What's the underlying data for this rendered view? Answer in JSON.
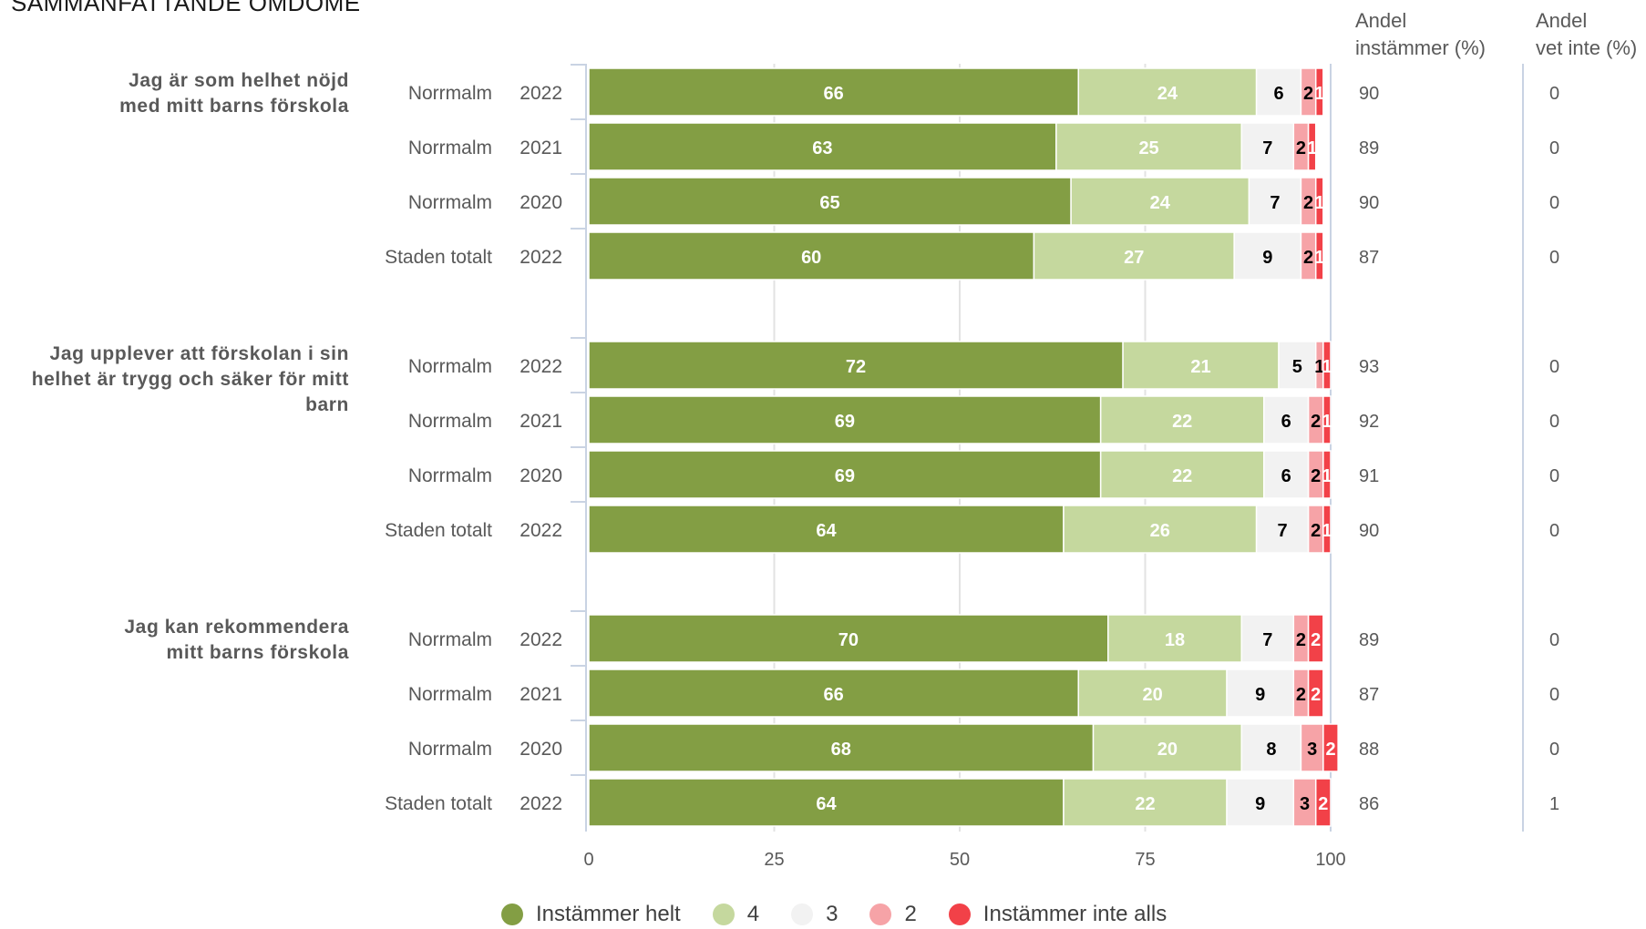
{
  "title": "SAMMANFATTANDE OMDÖME",
  "columns": {
    "agree_head": [
      "Andel",
      "instämmer (%)"
    ],
    "dontknow_head": [
      "Andel",
      "vet inte (%)"
    ]
  },
  "legend": [
    {
      "label": "Instämmer helt",
      "color": "#839e44"
    },
    {
      "label": "4",
      "color": "#c5d89e"
    },
    {
      "label": "3",
      "color": "#f2f2f2"
    },
    {
      "label": "2",
      "color": "#f6a3a7"
    },
    {
      "label": "Instämmer inte alls",
      "color": "#f24148"
    }
  ],
  "chart_data": {
    "type": "bar",
    "orientation": "horizontal",
    "stacked": true,
    "xlim": [
      0,
      100
    ],
    "xticks": [
      "0",
      "25",
      "50",
      "75",
      "100"
    ],
    "series_names": [
      "Instämmer helt",
      "4",
      "3",
      "2",
      "Instämmer inte alls"
    ],
    "groups": [
      {
        "question": [
          "Jag är som helhet nöjd",
          "med mitt barns förskola"
        ],
        "rows": [
          {
            "area": "Norrmalm",
            "year": "2022",
            "values": [
              66,
              24,
              6,
              2,
              1
            ],
            "agree": "90",
            "dontknow": "0"
          },
          {
            "area": "Norrmalm",
            "year": "2021",
            "values": [
              63,
              25,
              7,
              2,
              1
            ],
            "agree": "89",
            "dontknow": "0"
          },
          {
            "area": "Norrmalm",
            "year": "2020",
            "values": [
              65,
              24,
              7,
              2,
              1
            ],
            "agree": "90",
            "dontknow": "0"
          },
          {
            "area": "Staden totalt",
            "year": "2022",
            "values": [
              60,
              27,
              9,
              2,
              1
            ],
            "agree": "87",
            "dontknow": "0"
          }
        ]
      },
      {
        "question": [
          "Jag upplever att förskolan i sin",
          "helhet är trygg och säker för mitt",
          "barn"
        ],
        "rows": [
          {
            "area": "Norrmalm",
            "year": "2022",
            "values": [
              72,
              21,
              5,
              1,
              1
            ],
            "agree": "93",
            "dontknow": "0"
          },
          {
            "area": "Norrmalm",
            "year": "2021",
            "values": [
              69,
              22,
              6,
              2,
              1
            ],
            "agree": "92",
            "dontknow": "0"
          },
          {
            "area": "Norrmalm",
            "year": "2020",
            "values": [
              69,
              22,
              6,
              2,
              1
            ],
            "agree": "91",
            "dontknow": "0"
          },
          {
            "area": "Staden totalt",
            "year": "2022",
            "values": [
              64,
              26,
              7,
              2,
              1
            ],
            "agree": "90",
            "dontknow": "0"
          }
        ]
      },
      {
        "question": [
          "Jag kan rekommendera",
          "mitt barns förskola"
        ],
        "rows": [
          {
            "area": "Norrmalm",
            "year": "2022",
            "values": [
              70,
              18,
              7,
              2,
              2
            ],
            "agree": "89",
            "dontknow": "0"
          },
          {
            "area": "Norrmalm",
            "year": "2021",
            "values": [
              66,
              20,
              9,
              2,
              2
            ],
            "agree": "87",
            "dontknow": "0"
          },
          {
            "area": "Norrmalm",
            "year": "2020",
            "values": [
              68,
              20,
              8,
              3,
              2
            ],
            "agree": "88",
            "dontknow": "0"
          },
          {
            "area": "Staden totalt",
            "year": "2022",
            "values": [
              64,
              22,
              9,
              3,
              2
            ],
            "agree": "86",
            "dontknow": "1"
          }
        ]
      }
    ]
  }
}
